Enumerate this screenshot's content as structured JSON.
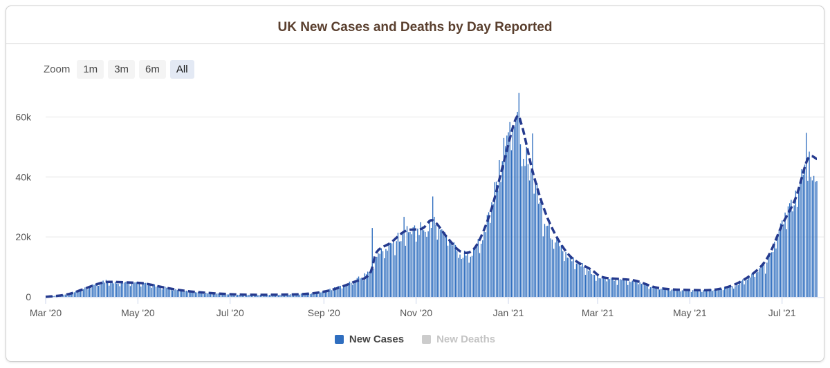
{
  "title": "UK New Cases and Deaths by Day Reported",
  "zoom": {
    "label": "Zoom",
    "buttons": [
      "1m",
      "3m",
      "6m",
      "All"
    ],
    "active": "All"
  },
  "legend": [
    {
      "name": "New Cases",
      "color": "#2f6ebf",
      "visible": true
    },
    {
      "name": "New Deaths",
      "color": "#cccccc",
      "visible": false
    }
  ],
  "colors": {
    "bars": "#2f6ebf",
    "average_line": "#253a8e",
    "grid": "#e6e6e6",
    "axis": "#ccd6eb"
  },
  "chart_data": {
    "type": "bar",
    "title": "UK New Cases and Deaths by Day Reported",
    "x_range": [
      "2020-03-01",
      "2021-07-24"
    ],
    "ylim": [
      0,
      70000
    ],
    "y_ticks": [
      0,
      20000,
      40000,
      60000
    ],
    "y_tick_labels": [
      "0",
      "20k",
      "40k",
      "60k"
    ],
    "x_tick_dates": [
      "2020-03-01",
      "2020-05-01",
      "2020-07-01",
      "2020-09-01",
      "2020-11-01",
      "2021-01-01",
      "2021-03-01",
      "2021-05-01",
      "2021-07-01"
    ],
    "x_tick_labels": [
      "Mar '20",
      "May '20",
      "Jul '20",
      "Sep '20",
      "Nov '20",
      "Jan '21",
      "Mar '21",
      "May '21",
      "Jul '21"
    ],
    "grid": "horizontal",
    "legend_position": "bottom-center",
    "series": [
      {
        "name": "New Cases",
        "type": "bar",
        "interpolate": "linear",
        "anchors": [
          [
            "2020-03-01",
            0
          ],
          [
            "2020-03-15",
            800
          ],
          [
            "2020-03-25",
            2500
          ],
          [
            "2020-04-05",
            4500
          ],
          [
            "2020-04-10",
            5300
          ],
          [
            "2020-04-20",
            4600
          ],
          [
            "2020-05-01",
            5000
          ],
          [
            "2020-05-15",
            3500
          ],
          [
            "2020-06-01",
            2000
          ],
          [
            "2020-06-15",
            1300
          ],
          [
            "2020-07-01",
            800
          ],
          [
            "2020-07-20",
            650
          ],
          [
            "2020-08-10",
            850
          ],
          [
            "2020-08-25",
            1200
          ],
          [
            "2020-09-05",
            2500
          ],
          [
            "2020-09-15",
            4000
          ],
          [
            "2020-09-25",
            6500
          ],
          [
            "2020-10-01",
            8000
          ],
          [
            "2020-10-05",
            13500
          ],
          [
            "2020-10-15",
            17500
          ],
          [
            "2020-10-25",
            21500
          ],
          [
            "2020-11-01",
            22500
          ],
          [
            "2020-11-08",
            23500
          ],
          [
            "2020-11-15",
            25500
          ],
          [
            "2020-11-22",
            20000
          ],
          [
            "2020-12-01",
            14000
          ],
          [
            "2020-12-08",
            15000
          ],
          [
            "2020-12-15",
            20000
          ],
          [
            "2020-12-20",
            30000
          ],
          [
            "2020-12-25",
            38000
          ],
          [
            "2020-12-29",
            52000
          ],
          [
            "2021-01-04",
            60000
          ],
          [
            "2021-01-08",
            59000
          ],
          [
            "2021-01-12",
            48000
          ],
          [
            "2021-01-18",
            38000
          ],
          [
            "2021-01-25",
            25000
          ],
          [
            "2021-02-01",
            19000
          ],
          [
            "2021-02-10",
            13000
          ],
          [
            "2021-02-20",
            10000
          ],
          [
            "2021-03-01",
            7000
          ],
          [
            "2021-03-15",
            5500
          ],
          [
            "2021-03-25",
            5500
          ],
          [
            "2021-04-05",
            3500
          ],
          [
            "2021-04-20",
            2500
          ],
          [
            "2021-05-05",
            2200
          ],
          [
            "2021-05-20",
            2500
          ],
          [
            "2021-06-01",
            4000
          ],
          [
            "2021-06-10",
            7000
          ],
          [
            "2021-06-20",
            11000
          ],
          [
            "2021-06-25",
            16000
          ],
          [
            "2021-07-01",
            26000
          ],
          [
            "2021-07-10",
            33000
          ],
          [
            "2021-07-17",
            48000
          ],
          [
            "2021-07-20",
            43000
          ],
          [
            "2021-07-24",
            40000
          ]
        ],
        "spikes": [
          [
            "2020-10-03",
            23000
          ],
          [
            "2020-10-24",
            26700
          ],
          [
            "2020-11-12",
            33500
          ],
          [
            "2020-12-29",
            53000
          ],
          [
            "2021-01-08",
            68000
          ],
          [
            "2021-01-17",
            54500
          ],
          [
            "2021-01-20",
            38000
          ],
          [
            "2021-07-17",
            54700
          ]
        ],
        "color": "#2f6ebf"
      },
      {
        "name": "7-day average",
        "type": "line",
        "style": "dashed",
        "points": [
          [
            "2020-03-01",
            0
          ],
          [
            "2020-03-15",
            800
          ],
          [
            "2020-03-25",
            2400
          ],
          [
            "2020-04-05",
            4400
          ],
          [
            "2020-04-12",
            5000
          ],
          [
            "2020-04-25",
            4800
          ],
          [
            "2020-05-05",
            4500
          ],
          [
            "2020-05-20",
            3000
          ],
          [
            "2020-06-05",
            1800
          ],
          [
            "2020-07-01",
            900
          ],
          [
            "2020-07-25",
            700
          ],
          [
            "2020-08-20",
            1000
          ],
          [
            "2020-09-05",
            2200
          ],
          [
            "2020-09-20",
            4800
          ],
          [
            "2020-10-01",
            7500
          ],
          [
            "2020-10-06",
            15000
          ],
          [
            "2020-10-15",
            18000
          ],
          [
            "2020-10-25",
            22000
          ],
          [
            "2020-11-05",
            22800
          ],
          [
            "2020-11-12",
            25500
          ],
          [
            "2020-11-22",
            19500
          ],
          [
            "2020-12-01",
            15000
          ],
          [
            "2020-12-10",
            16500
          ],
          [
            "2020-12-20",
            28000
          ],
          [
            "2020-12-29",
            45000
          ],
          [
            "2021-01-06",
            59500
          ],
          [
            "2021-01-10",
            57000
          ],
          [
            "2021-01-18",
            40000
          ],
          [
            "2021-01-28",
            25000
          ],
          [
            "2021-02-10",
            14000
          ],
          [
            "2021-02-25",
            9000
          ],
          [
            "2021-03-05",
            6500
          ],
          [
            "2021-03-25",
            5500
          ],
          [
            "2021-04-10",
            3000
          ],
          [
            "2021-05-01",
            2300
          ],
          [
            "2021-05-20",
            2600
          ],
          [
            "2021-06-05",
            5500
          ],
          [
            "2021-06-20",
            12000
          ],
          [
            "2021-07-01",
            24000
          ],
          [
            "2021-07-10",
            33000
          ],
          [
            "2021-07-18",
            46000
          ],
          [
            "2021-07-24",
            46000
          ]
        ],
        "color": "#253a8e"
      }
    ]
  }
}
